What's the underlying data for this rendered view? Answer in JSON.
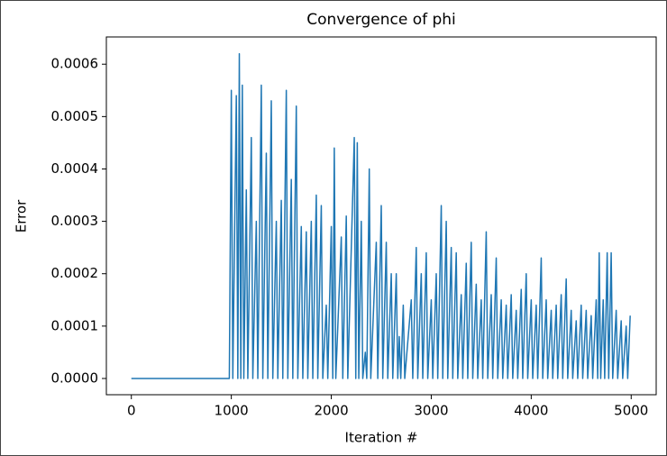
{
  "chart_data": {
    "type": "line",
    "title": "Convergence of phi",
    "xlabel": "Iteration #",
    "ylabel": "Error",
    "color": "#1f77b4",
    "xlim": [
      -250,
      5250
    ],
    "ylim": [
      -3.1e-05,
      0.000652
    ],
    "xticks": [
      0,
      1000,
      2000,
      3000,
      4000,
      5000
    ],
    "yticks": [
      {
        "value": 0,
        "label": "0.0000"
      },
      {
        "value": 0.0001,
        "label": "0.0001"
      },
      {
        "value": 0.0002,
        "label": "0.0002"
      },
      {
        "value": 0.0003,
        "label": "0.0003"
      },
      {
        "value": 0.0004,
        "label": "0.0004"
      },
      {
        "value": 0.0005,
        "label": "0.0005"
      },
      {
        "value": 0.0006,
        "label": "0.0006"
      }
    ],
    "x": [
      0,
      980,
      1000,
      1015,
      1050,
      1065,
      1080,
      1095,
      1110,
      1125,
      1150,
      1165,
      1200,
      1215,
      1250,
      1265,
      1300,
      1315,
      1350,
      1365,
      1400,
      1415,
      1450,
      1465,
      1500,
      1515,
      1550,
      1565,
      1600,
      1615,
      1650,
      1665,
      1700,
      1715,
      1750,
      1765,
      1800,
      1815,
      1850,
      1865,
      1900,
      1915,
      1950,
      1965,
      2000,
      2015,
      2030,
      2045,
      2100,
      2115,
      2150,
      2165,
      2230,
      2245,
      2260,
      2275,
      2300,
      2315,
      2340,
      2355,
      2380,
      2395,
      2450,
      2465,
      2500,
      2515,
      2550,
      2565,
      2600,
      2615,
      2650,
      2665,
      2680,
      2695,
      2720,
      2735,
      2800,
      2815,
      2850,
      2865,
      2900,
      2915,
      2950,
      2965,
      3000,
      3015,
      3050,
      3065,
      3100,
      3115,
      3150,
      3165,
      3200,
      3215,
      3250,
      3265,
      3300,
      3315,
      3350,
      3365,
      3400,
      3415,
      3450,
      3465,
      3500,
      3515,
      3550,
      3565,
      3600,
      3615,
      3650,
      3665,
      3700,
      3715,
      3750,
      3765,
      3800,
      3815,
      3850,
      3865,
      3900,
      3915,
      3950,
      3965,
      4000,
      4015,
      4050,
      4065,
      4100,
      4115,
      4150,
      4165,
      4200,
      4215,
      4250,
      4265,
      4300,
      4315,
      4350,
      4365,
      4400,
      4415,
      4450,
      4465,
      4500,
      4515,
      4550,
      4565,
      4600,
      4615,
      4650,
      4665,
      4680,
      4695,
      4720,
      4735,
      4760,
      4775,
      4800,
      4815,
      4850,
      4865,
      4900,
      4915,
      4950,
      4965,
      4990
    ],
    "values": [
      0,
      0,
      0.00055,
      0,
      0.00054,
      0,
      0.00062,
      0,
      0.00056,
      0,
      0.00036,
      0,
      0.00046,
      0,
      0.0003,
      0,
      0.00056,
      0,
      0.00043,
      0,
      0.00053,
      0,
      0.0003,
      0,
      0.00034,
      0,
      0.00055,
      0,
      0.00038,
      0,
      0.00052,
      0,
      0.00029,
      0,
      0.00028,
      0,
      0.0003,
      0,
      0.00035,
      0,
      0.00033,
      0,
      0.00014,
      0,
      0.00029,
      0,
      0.00044,
      0,
      0.00027,
      0,
      0.00031,
      0,
      0.00046,
      0,
      0.00045,
      0,
      0.0003,
      0,
      5e-05,
      0,
      0.0004,
      0,
      0.00026,
      0,
      0.00033,
      0,
      0.00026,
      0,
      0.0002,
      0,
      0.0002,
      0,
      8e-05,
      0,
      0.00014,
      0,
      0.00015,
      0,
      0.00025,
      0,
      0.0002,
      0,
      0.00024,
      0,
      0.00015,
      0,
      0.0002,
      0,
      0.00033,
      0,
      0.0003,
      0,
      0.00025,
      0,
      0.00024,
      0,
      0.00016,
      0,
      0.00022,
      0,
      0.00026,
      0,
      0.00018,
      0,
      0.00015,
      0,
      0.00028,
      0,
      0.00016,
      0,
      0.00023,
      0,
      0.00015,
      0,
      0.00014,
      0,
      0.00016,
      0,
      0.00013,
      0,
      0.00017,
      0,
      0.0002,
      0,
      0.00015,
      0,
      0.00014,
      0,
      0.00023,
      0,
      0.00015,
      0,
      0.00013,
      0,
      0.00014,
      0,
      0.00016,
      0,
      0.00019,
      0,
      0.00013,
      0,
      0.00011,
      0,
      0.00014,
      0,
      0.00013,
      0,
      0.00012,
      0,
      0.00015,
      0,
      0.00024,
      0,
      0.00015,
      0,
      0.00024,
      0,
      0.00024,
      0,
      0.00013,
      0,
      0.00011,
      0,
      0.0001,
      0,
      0.00012
    ]
  }
}
